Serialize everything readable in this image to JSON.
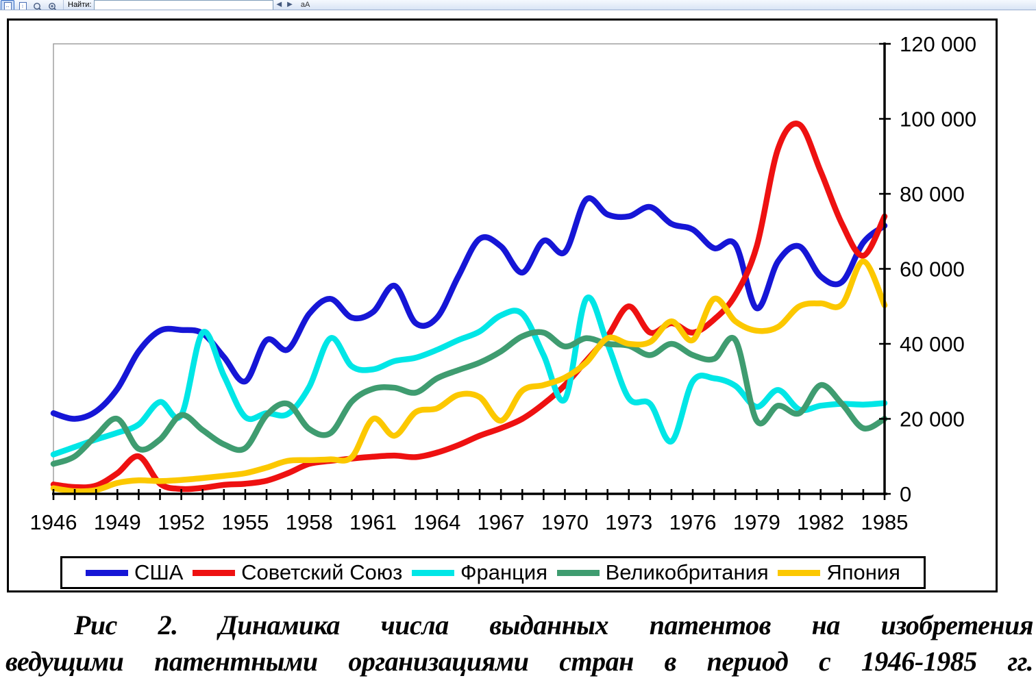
{
  "toolbar": {
    "find_label": "Найти:",
    "find_value": "",
    "match_case": "aA",
    "prev_arrow": "◀",
    "next_arrow": "▶"
  },
  "chart_data": {
    "type": "line",
    "title": "",
    "xlabel": "",
    "ylabel": "",
    "xlim": [
      1946,
      1985
    ],
    "ylim": [
      0,
      120000
    ],
    "grid": false,
    "legend_position": "bottom",
    "x": [
      1946,
      1947,
      1948,
      1949,
      1950,
      1951,
      1952,
      1953,
      1954,
      1955,
      1956,
      1957,
      1958,
      1959,
      1960,
      1961,
      1962,
      1963,
      1964,
      1965,
      1966,
      1967,
      1968,
      1969,
      1970,
      1971,
      1972,
      1973,
      1974,
      1975,
      1976,
      1977,
      1978,
      1979,
      1980,
      1981,
      1982,
      1983,
      1984,
      1985
    ],
    "x_tick_labels": [
      "1946",
      "1949",
      "1952",
      "1955",
      "1958",
      "1961",
      "1964",
      "1967",
      "1970",
      "1973",
      "1976",
      "1979",
      "1982",
      "1985"
    ],
    "y_ticks": [
      0,
      20000,
      40000,
      60000,
      80000,
      100000,
      120000
    ],
    "y_tick_labels": [
      "0",
      "20 000",
      "40 000",
      "60 000",
      "80 000",
      "100 000",
      "120 000"
    ],
    "series": [
      {
        "name": "США",
        "color": "#1616D6",
        "values": [
          21500,
          20000,
          22000,
          28000,
          38000,
          43500,
          43700,
          42800,
          36500,
          30000,
          41000,
          38500,
          48000,
          52000,
          47000,
          48500,
          55500,
          45500,
          47000,
          58000,
          68000,
          66000,
          59000,
          67500,
          64500,
          78500,
          74500,
          74000,
          76500,
          72000,
          70500,
          65500,
          66500,
          49500,
          62000,
          66000,
          58000,
          56500,
          67000,
          71500
        ]
      },
      {
        "name": "Советский Союз",
        "color": "#EE1111",
        "values": [
          2500,
          1800,
          2200,
          5500,
          10000,
          2700,
          1300,
          1600,
          2400,
          2700,
          3500,
          5500,
          8000,
          8800,
          9400,
          9900,
          10200,
          9800,
          11000,
          13000,
          15500,
          17500,
          20000,
          24000,
          29000,
          35500,
          42000,
          50000,
          43000,
          45500,
          43000,
          46500,
          53000,
          66000,
          92000,
          98500,
          86000,
          72000,
          63500,
          74000
        ]
      },
      {
        "name": "Франция",
        "color": "#00E6E6",
        "values": [
          10500,
          12500,
          14500,
          16300,
          18500,
          24500,
          21000,
          43000,
          31500,
          20500,
          21500,
          21300,
          28500,
          41500,
          34000,
          33200,
          35400,
          36300,
          38400,
          41000,
          43300,
          47600,
          48000,
          37000,
          25200,
          52000,
          40000,
          25500,
          24000,
          14000,
          30000,
          30800,
          28800,
          23200,
          27700,
          22500,
          23500,
          24000,
          23800,
          24200
        ]
      },
      {
        "name": "Великобритания",
        "color": "#3F9C70",
        "values": [
          8000,
          10000,
          15500,
          20000,
          12000,
          14500,
          21000,
          17000,
          13200,
          12200,
          21000,
          24000,
          17300,
          16200,
          24600,
          28000,
          28300,
          27000,
          30800,
          33000,
          35000,
          38000,
          42000,
          43000,
          39300,
          41500,
          40000,
          39500,
          37000,
          40000,
          37000,
          36000,
          41000,
          19500,
          23500,
          21500,
          29000,
          24000,
          17500,
          20000
        ]
      },
      {
        "name": "Япония",
        "color": "#FCC800",
        "values": [
          1500,
          700,
          1000,
          2900,
          3600,
          3400,
          3700,
          4200,
          4800,
          5500,
          7000,
          8800,
          9000,
          9200,
          9800,
          20000,
          15500,
          21800,
          22800,
          26400,
          25800,
          19500,
          27500,
          29000,
          31000,
          35000,
          41500,
          40000,
          40500,
          46000,
          41000,
          52000,
          46000,
          43500,
          44500,
          50000,
          50800,
          50500,
          62000,
          50300
        ]
      }
    ]
  },
  "caption": {
    "line1": "Рис 2. Динамика числа выданных патентов на изобретения",
    "line2": "ведущими патентными организациями стран в период с 1946-1985 гг."
  }
}
